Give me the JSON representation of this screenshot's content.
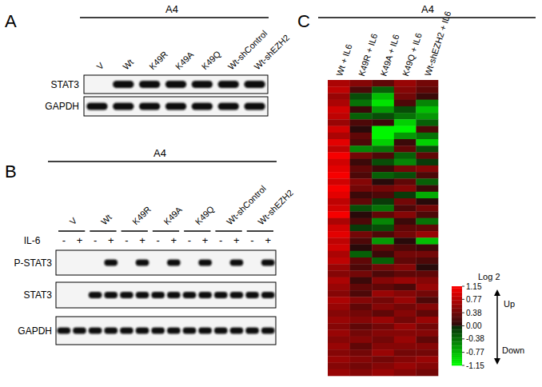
{
  "panels": [
    {
      "label": "A",
      "header": "A4",
      "lanes": [
        "V",
        "Wt",
        "K49R",
        "K49A",
        "K49Q",
        "Wt-shControl",
        "Wt-shEZH2"
      ],
      "blots": [
        {
          "name": "STAT3",
          "bands": [
            0,
            1,
            1,
            1,
            1,
            1,
            1
          ]
        },
        {
          "name": "GAPDH",
          "bands": [
            1,
            1,
            1,
            1,
            1,
            1,
            1
          ]
        }
      ]
    },
    {
      "label": "B",
      "header": "A4",
      "lanes": [
        "V",
        "Wt",
        "K49R",
        "K49A",
        "K49Q",
        "Wt-shControl",
        "Wt-shEZH2"
      ],
      "treatment": {
        "name": "IL-6",
        "signs": [
          "-",
          "+",
          "-",
          "+",
          "-",
          "+",
          "-",
          "+",
          "-",
          "+",
          "-",
          "+",
          "-",
          "+"
        ]
      },
      "blots": [
        {
          "name": "P-STAT3",
          "bands": [
            0,
            0,
            0,
            1,
            0,
            1,
            0,
            1,
            0,
            1,
            0,
            1,
            0,
            1
          ]
        },
        {
          "name": "STAT3",
          "bands": [
            0,
            0,
            1,
            1,
            1,
            1,
            1,
            1,
            1,
            1,
            1,
            1,
            1,
            1
          ]
        },
        {
          "name": "GAPDH",
          "bands": [
            1,
            1,
            1,
            1,
            1,
            1,
            1,
            1,
            1,
            1,
            1,
            1,
            1,
            1
          ]
        }
      ]
    }
  ],
  "chart_data": {
    "type": "heatmap",
    "panel_label": "C",
    "title": "A4",
    "categories": [
      "Wt + IL6",
      "K49R + IL6",
      "K49A + IL6",
      "K49Q + IL6",
      "Wt-shEZH2 + IL6"
    ],
    "cells": [
      [
        0.7,
        0.5,
        0.3,
        0.6,
        0.4
      ],
      [
        0.8,
        0.2,
        -0.3,
        0.5,
        0.3
      ],
      [
        0.6,
        -0.2,
        -0.8,
        0.4,
        0.1
      ],
      [
        0.7,
        -0.4,
        -1.0,
        0.2,
        -0.5
      ],
      [
        0.9,
        0.1,
        -0.6,
        -0.2,
        -0.8
      ],
      [
        0.8,
        -0.3,
        -0.2,
        -0.4,
        -0.6
      ],
      [
        0.6,
        0.2,
        0.1,
        -0.9,
        -0.3
      ],
      [
        0.9,
        0.0,
        -1.1,
        -1.1,
        0.2
      ],
      [
        0.7,
        0.3,
        -1.1,
        -0.6,
        -0.4
      ],
      [
        1.0,
        0.2,
        -0.9,
        0.1,
        -0.9
      ],
      [
        0.8,
        -0.5,
        -0.4,
        0.3,
        -0.2
      ],
      [
        1.1,
        0.4,
        0.2,
        -0.3,
        0.3
      ],
      [
        0.9,
        0.1,
        -0.2,
        -0.5,
        -0.1
      ],
      [
        1.0,
        0.3,
        0.1,
        0.4,
        0.5
      ],
      [
        1.1,
        0.2,
        -0.3,
        -0.2,
        0.2
      ],
      [
        0.9,
        0.5,
        0.0,
        0.3,
        -0.3
      ],
      [
        1.1,
        0.4,
        0.4,
        0.5,
        0.1
      ],
      [
        1.0,
        0.1,
        0.2,
        -0.1,
        -0.7
      ],
      [
        0.8,
        0.3,
        -0.1,
        0.4,
        0.0
      ],
      [
        0.9,
        -0.2,
        -0.4,
        0.2,
        0.4
      ],
      [
        1.1,
        0.0,
        0.3,
        0.5,
        0.2
      ],
      [
        0.7,
        0.2,
        -0.5,
        0.1,
        -0.4
      ],
      [
        0.9,
        -0.1,
        -0.2,
        0.3,
        0.3
      ],
      [
        1.0,
        0.4,
        0.2,
        0.4,
        0.6
      ],
      [
        0.8,
        0.2,
        -0.6,
        0.0,
        -0.8
      ],
      [
        0.9,
        0.0,
        0.3,
        0.2,
        0.1
      ],
      [
        0.7,
        -0.3,
        0.1,
        0.4,
        0.4
      ],
      [
        0.8,
        0.3,
        -0.3,
        0.3,
        0.2
      ],
      [
        0.6,
        0.2,
        0.4,
        0.5,
        0.0
      ],
      [
        0.5,
        0.4,
        0.2,
        0.3,
        0.3
      ],
      [
        0.7,
        0.1,
        0.5,
        0.6,
        0.5
      ],
      [
        0.6,
        0.3,
        0.3,
        0.2,
        0.6
      ],
      [
        0.5,
        0.2,
        0.6,
        0.5,
        0.4
      ],
      [
        0.7,
        0.5,
        0.4,
        0.6,
        0.2
      ],
      [
        0.6,
        0.3,
        0.5,
        0.4,
        0.5
      ],
      [
        0.5,
        0.4,
        0.3,
        0.5,
        0.3
      ],
      [
        0.6,
        0.5,
        0.6,
        0.4,
        0.6
      ],
      [
        0.5,
        0.3,
        0.4,
        0.6,
        0.4
      ],
      [
        0.6,
        0.4,
        0.5,
        0.5,
        0.5
      ],
      [
        0.5,
        0.5,
        0.4,
        0.6,
        0.3
      ],
      [
        0.6,
        0.3,
        0.5,
        0.5,
        0.5
      ],
      [
        0.5,
        0.4,
        0.6,
        0.4,
        0.4
      ],
      [
        0.6,
        0.5,
        0.4,
        0.5,
        0.6
      ],
      [
        0.5,
        0.4,
        0.5,
        0.6,
        0.5
      ],
      [
        0.6,
        0.5,
        0.6,
        0.5,
        0.4
      ]
    ],
    "colorbar": {
      "title": "Log 2",
      "range": [
        -1.15,
        1.15
      ],
      "ticks": [
        1.15,
        0.77,
        0.38,
        {
          "value": 0,
          "label": "0.00"
        },
        -0.38,
        -0.77,
        -1.15
      ],
      "up": "Up",
      "down": "Down"
    }
  }
}
